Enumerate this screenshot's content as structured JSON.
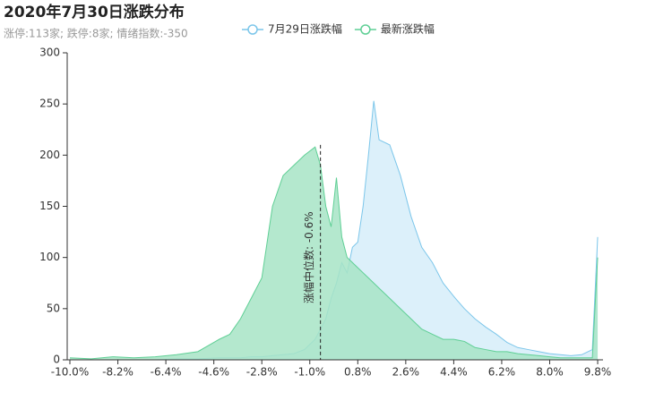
{
  "chart_data": {
    "type": "area",
    "title": "2020年7月30日涨跌分布",
    "subtitle": "涨停:113家; 跌停:8家; 情绪指数:-350",
    "x": [
      -10,
      -9.2,
      -8.4,
      -7.6,
      -6.8,
      -6.0,
      -5.2,
      -4.4,
      -4.0,
      -3.6,
      -3.2,
      -2.8,
      -2.4,
      -2.0,
      -1.6,
      -1.2,
      -0.8,
      -0.6,
      -0.4,
      -0.2,
      0,
      0.2,
      0.4,
      0.6,
      0.8,
      1.0,
      1.2,
      1.4,
      1.6,
      2.0,
      2.4,
      2.8,
      3.2,
      3.6,
      4.0,
      4.4,
      4.8,
      5.2,
      5.6,
      6.0,
      6.4,
      6.8,
      7.2,
      7.6,
      8.0,
      8.4,
      8.8,
      9.2,
      9.6,
      9.8
    ],
    "series": [
      {
        "name": "7月29日涨跌幅",
        "color": "#7cc6ea",
        "fill": "#dcf0fa",
        "values": [
          0,
          0,
          0,
          0,
          0,
          1,
          1,
          2,
          2,
          2,
          3,
          3,
          4,
          5,
          6,
          10,
          20,
          30,
          40,
          60,
          75,
          95,
          85,
          110,
          115,
          150,
          200,
          253,
          215,
          210,
          180,
          140,
          110,
          95,
          75,
          62,
          50,
          40,
          32,
          25,
          17,
          12,
          10,
          8,
          6,
          5,
          4,
          5,
          10,
          120
        ]
      },
      {
        "name": "最新涨跌幅",
        "color": "#5fcf95",
        "fill": "#a7e4c5",
        "values": [
          2,
          1,
          3,
          2,
          3,
          5,
          8,
          20,
          25,
          40,
          60,
          80,
          150,
          180,
          190,
          200,
          208,
          190,
          150,
          130,
          178,
          120,
          100,
          95,
          90,
          85,
          80,
          75,
          70,
          60,
          50,
          40,
          30,
          25,
          20,
          20,
          18,
          12,
          10,
          8,
          8,
          6,
          5,
          4,
          3,
          2,
          2,
          2,
          2,
          100
        ]
      }
    ],
    "xlim": [
      -10,
      10
    ],
    "ylim": [
      0,
      300
    ],
    "xticks": [
      {
        "value": -10,
        "label": "-10.0%"
      },
      {
        "value": -8.2,
        "label": "-8.2%"
      },
      {
        "value": -6.4,
        "label": "-6.4%"
      },
      {
        "value": -4.6,
        "label": "-4.6%"
      },
      {
        "value": -2.8,
        "label": "-2.8%"
      },
      {
        "value": -1.0,
        "label": "-1.0%"
      },
      {
        "value": 0.8,
        "label": "0.8%"
      },
      {
        "value": 2.6,
        "label": "2.6%"
      },
      {
        "value": 4.4,
        "label": "4.4%"
      },
      {
        "value": 6.2,
        "label": "6.2%"
      },
      {
        "value": 8.0,
        "label": "8.0%"
      },
      {
        "value": 9.8,
        "label": "9.8%"
      }
    ],
    "yticks": [
      0,
      50,
      100,
      150,
      200,
      250,
      300
    ],
    "median": {
      "value": -0.6,
      "label": "涨幅中位数: -0.6%"
    },
    "legend": "top"
  }
}
